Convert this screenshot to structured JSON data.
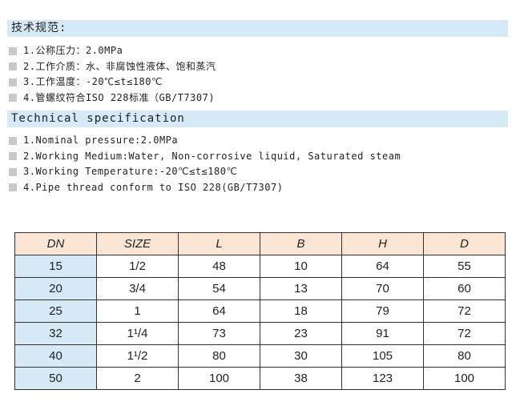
{
  "cn": {
    "title": "技术规范:",
    "items": [
      "1.公称压力：2.0MPa",
      "2.工作介质：水、非腐蚀性液体、饱和蒸汽",
      "3.工作温度：-20℃≤t≤180℃",
      "4.管螺纹符合ISO 228标准（GB/T7307)"
    ]
  },
  "en": {
    "title": "Technical specification",
    "items": [
      "1.Nominal pressure:2.0MPa",
      "2.Working Medium:Water, Non-corrosive liquid, Saturated steam",
      "3.Working Temperature:-20℃≤t≤180℃",
      "4.Pipe thread conform to ISO 228(GB/T7307)"
    ]
  },
  "table": {
    "headers": [
      "DN",
      "SIZE",
      "L",
      "B",
      "H",
      "D"
    ],
    "rows": [
      [
        "15",
        "1/2",
        "48",
        "10",
        "64",
        "55"
      ],
      [
        "20",
        "3/4",
        "54",
        "13",
        "70",
        "60"
      ],
      [
        "25",
        "1",
        "64",
        "18",
        "79",
        "72"
      ],
      [
        "32",
        "1¹/4",
        "73",
        "23",
        "91",
        "72"
      ],
      [
        "40",
        "1¹/2",
        "80",
        "30",
        "105",
        "80"
      ],
      [
        "50",
        "2",
        "100",
        "38",
        "123",
        "100"
      ]
    ]
  },
  "colors": {
    "header_bar": "#d5e9f6",
    "table_header": "#fbe6d6",
    "dn_column": "#d5e9f6"
  }
}
